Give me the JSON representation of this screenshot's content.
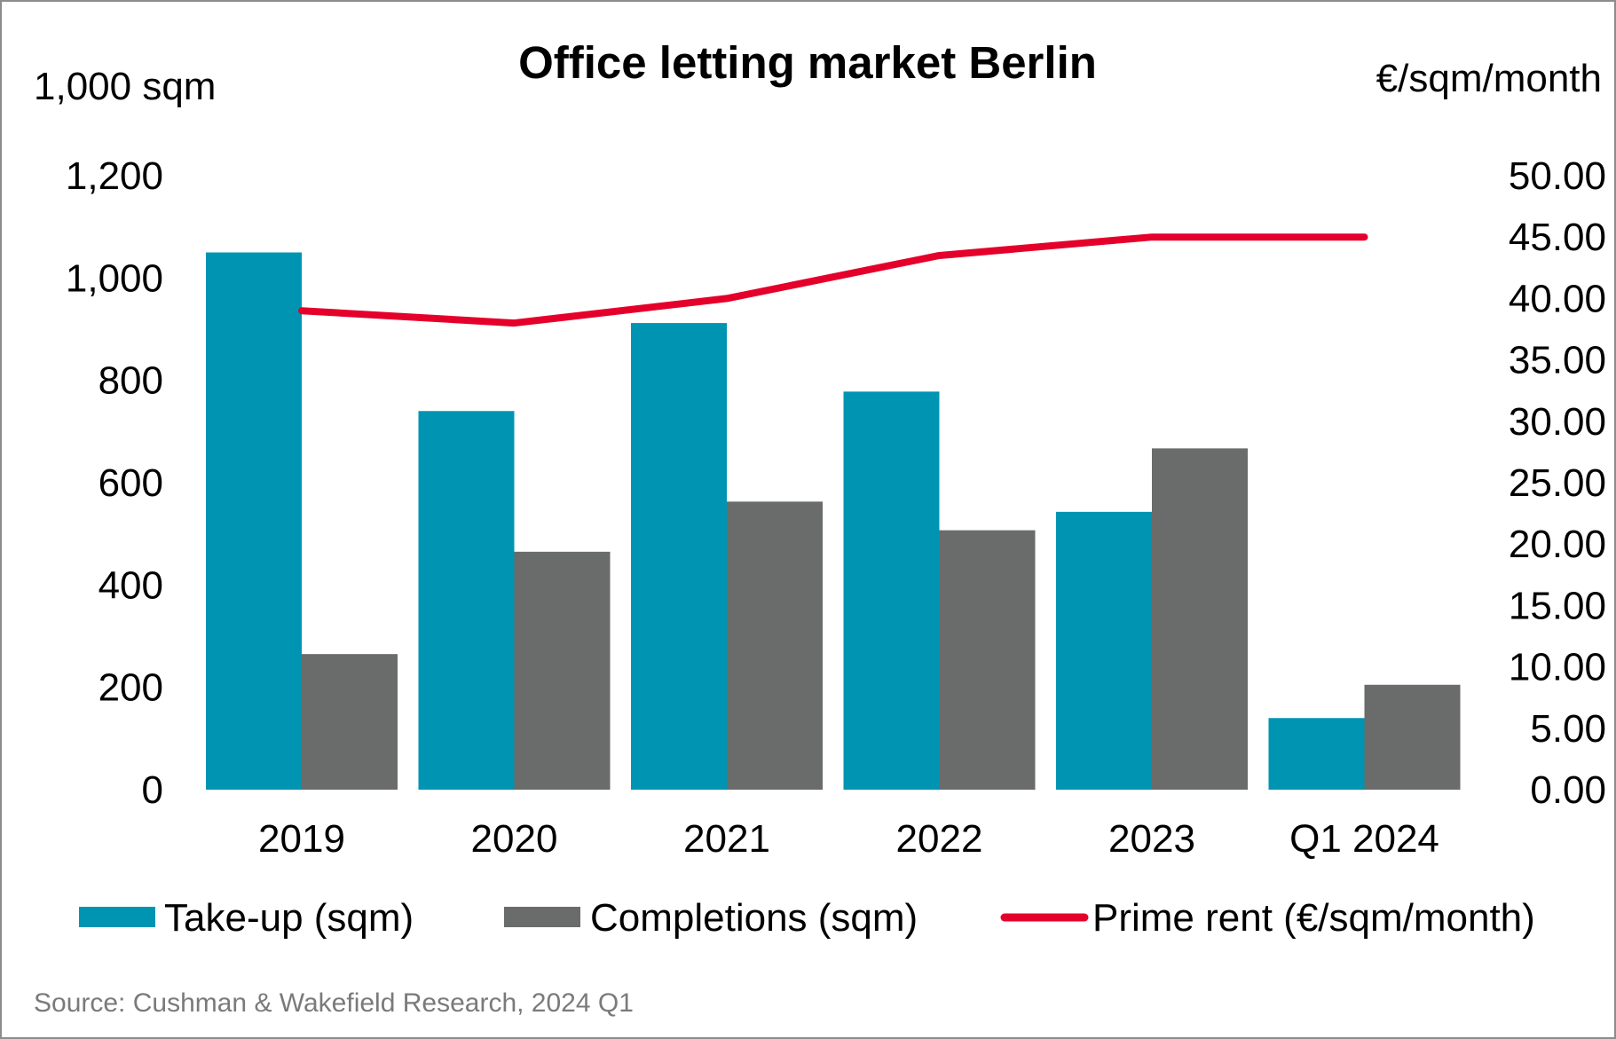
{
  "chart_data": {
    "type": "bar",
    "title": "Office letting market Berlin",
    "ylabel_left": "1,000 sqm",
    "ylabel_right": "€/sqm/month",
    "categories": [
      "2019",
      "2020",
      "2021",
      "2022",
      "2023",
      "Q1 2024"
    ],
    "ylim_left": [
      0,
      1200
    ],
    "yticks_left": [
      0,
      200,
      400,
      600,
      800,
      1000,
      1200
    ],
    "ytick_labels_left": [
      "0",
      "200",
      "400",
      "600",
      "800",
      "1,000",
      "1,200"
    ],
    "ylim_right": [
      0,
      50
    ],
    "yticks_right": [
      0,
      5,
      10,
      15,
      20,
      25,
      30,
      35,
      40,
      45,
      50
    ],
    "ytick_labels_right": [
      "0.00",
      "5.00",
      "10.00",
      "15.00",
      "20.00",
      "25.00",
      "30.00",
      "35.00",
      "40.00",
      "45.00",
      "50.00"
    ],
    "series": [
      {
        "name": "Take-up (sqm)",
        "kind": "bar",
        "axis": "left",
        "color": "#0094b3",
        "values": [
          1050,
          740,
          912,
          778,
          543,
          140
        ]
      },
      {
        "name": "Completions (sqm)",
        "kind": "bar",
        "axis": "left",
        "color": "#6a6b6b",
        "values": [
          265,
          465,
          563,
          507,
          667,
          205
        ]
      },
      {
        "name": "Prime rent (€/sqm/month)",
        "kind": "line",
        "axis": "right",
        "color": "#e4002b",
        "values": [
          39.0,
          38.0,
          40.0,
          43.5,
          45.0,
          45.0
        ]
      }
    ],
    "legend_position": "bottom",
    "grid": false,
    "source": "Source: Cushman & Wakefield Research, 2024 Q1"
  }
}
